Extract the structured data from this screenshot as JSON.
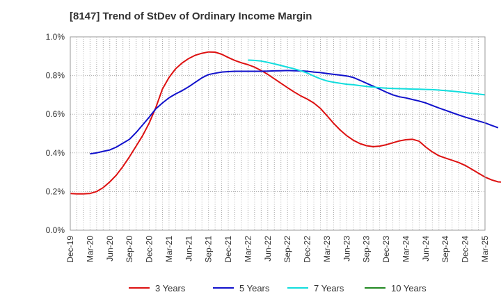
{
  "chart_data": {
    "type": "line",
    "title": "[8147]  Trend of StDev of Ordinary Income Margin",
    "x": [
      "Dec-19",
      "Mar-20",
      "Jun-20",
      "Sep-20",
      "Dec-20",
      "Mar-21",
      "Jun-21",
      "Sep-21",
      "Dec-21",
      "Mar-22",
      "Jun-22",
      "Sep-22",
      "Dec-22",
      "Mar-23",
      "Jun-23",
      "Sep-23",
      "Dec-23",
      "Mar-24",
      "Jun-24",
      "Sep-24",
      "Dec-24",
      "Mar-25"
    ],
    "ylim": [
      0,
      1.0
    ],
    "yticks": [
      0,
      0.2,
      0.4,
      0.6,
      0.8,
      1.0
    ],
    "yticklabels": [
      "0.0%",
      "0.2%",
      "0.4%",
      "0.6%",
      "0.8%",
      "1.0%"
    ],
    "grid": true,
    "legend_position": "bottom",
    "series": [
      {
        "name": "3 Years",
        "color": "#dd1111",
        "values": [
          0.19,
          0.19,
          0.28,
          0.47,
          0.73,
          0.87,
          0.92,
          0.88,
          0.85,
          0.8,
          0.73,
          0.67,
          0.57,
          0.45,
          0.43,
          0.47,
          0.42,
          0.37,
          0.33,
          0.26,
          0.265,
          null
        ],
        "monthly": [
          0.19,
          0.188,
          0.188,
          0.19,
          0.2,
          0.22,
          0.25,
          0.285,
          0.33,
          0.38,
          0.435,
          0.49,
          0.555,
          0.635,
          0.73,
          0.79,
          0.835,
          0.865,
          0.888,
          0.905,
          0.915,
          0.922,
          0.921,
          0.91,
          0.893,
          0.878,
          0.866,
          0.856,
          0.843,
          0.826,
          0.806,
          0.783,
          0.76,
          0.737,
          0.715,
          0.695,
          0.678,
          0.658,
          0.63,
          0.592,
          0.553,
          0.518,
          0.489,
          0.465,
          0.448,
          0.437,
          0.432,
          0.435,
          0.442,
          0.452,
          0.462,
          0.468,
          0.47,
          0.46,
          0.43,
          0.405,
          0.385,
          0.373,
          0.362,
          0.35,
          0.335,
          0.315,
          0.295,
          0.275,
          0.26,
          0.25,
          0.248,
          0.252,
          0.265
        ]
      },
      {
        "name": "5 Years",
        "color": "#1111cc",
        "values": [
          null,
          0.4,
          0.42,
          0.49,
          0.63,
          0.71,
          0.79,
          0.82,
          0.82,
          0.82,
          0.825,
          0.82,
          0.81,
          0.8,
          0.76,
          0.72,
          0.69,
          0.66,
          0.62,
          0.58,
          0.53,
          null
        ],
        "start_index": 3,
        "monthly": [
          0.395,
          0.4,
          0.408,
          0.415,
          0.43,
          0.45,
          0.47,
          0.505,
          0.545,
          0.585,
          0.628,
          0.658,
          0.685,
          0.705,
          0.722,
          0.742,
          0.765,
          0.788,
          0.805,
          0.812,
          0.818,
          0.82,
          0.822,
          0.822,
          0.822,
          0.822,
          0.822,
          0.823,
          0.824,
          0.825,
          0.826,
          0.825,
          0.824,
          0.822,
          0.818,
          0.815,
          0.81,
          0.806,
          0.802,
          0.798,
          0.79,
          0.775,
          0.76,
          0.745,
          0.73,
          0.714,
          0.7,
          0.69,
          0.684,
          0.676,
          0.668,
          0.658,
          0.645,
          0.632,
          0.62,
          0.608,
          0.596,
          0.585,
          0.575,
          0.565,
          0.555,
          0.542,
          0.53
        ]
      },
      {
        "name": "7 Years",
        "color": "#11dddd",
        "values": [
          null,
          null,
          null,
          null,
          null,
          null,
          null,
          null,
          null,
          0.88,
          0.87,
          0.84,
          0.8,
          0.765,
          0.75,
          0.74,
          0.735,
          0.73,
          0.725,
          0.72,
          0.7,
          null
        ],
        "start_index": 27,
        "monthly": [
          0.88,
          0.878,
          0.875,
          0.868,
          0.86,
          0.852,
          0.843,
          0.835,
          0.825,
          0.813,
          0.797,
          0.783,
          0.772,
          0.765,
          0.76,
          0.755,
          0.752,
          0.748,
          0.744,
          0.74,
          0.737,
          0.735,
          0.733,
          0.732,
          0.731,
          0.73,
          0.729,
          0.728,
          0.727,
          0.725,
          0.722,
          0.719,
          0.716,
          0.712,
          0.708,
          0.704,
          0.7
        ]
      },
      {
        "name": "10 Years",
        "color": "#228822",
        "values": [
          null,
          null,
          null,
          null,
          null,
          null,
          null,
          null,
          null,
          null,
          null,
          null,
          null,
          null,
          null,
          null,
          null,
          null,
          null,
          null,
          null,
          null
        ]
      }
    ]
  }
}
